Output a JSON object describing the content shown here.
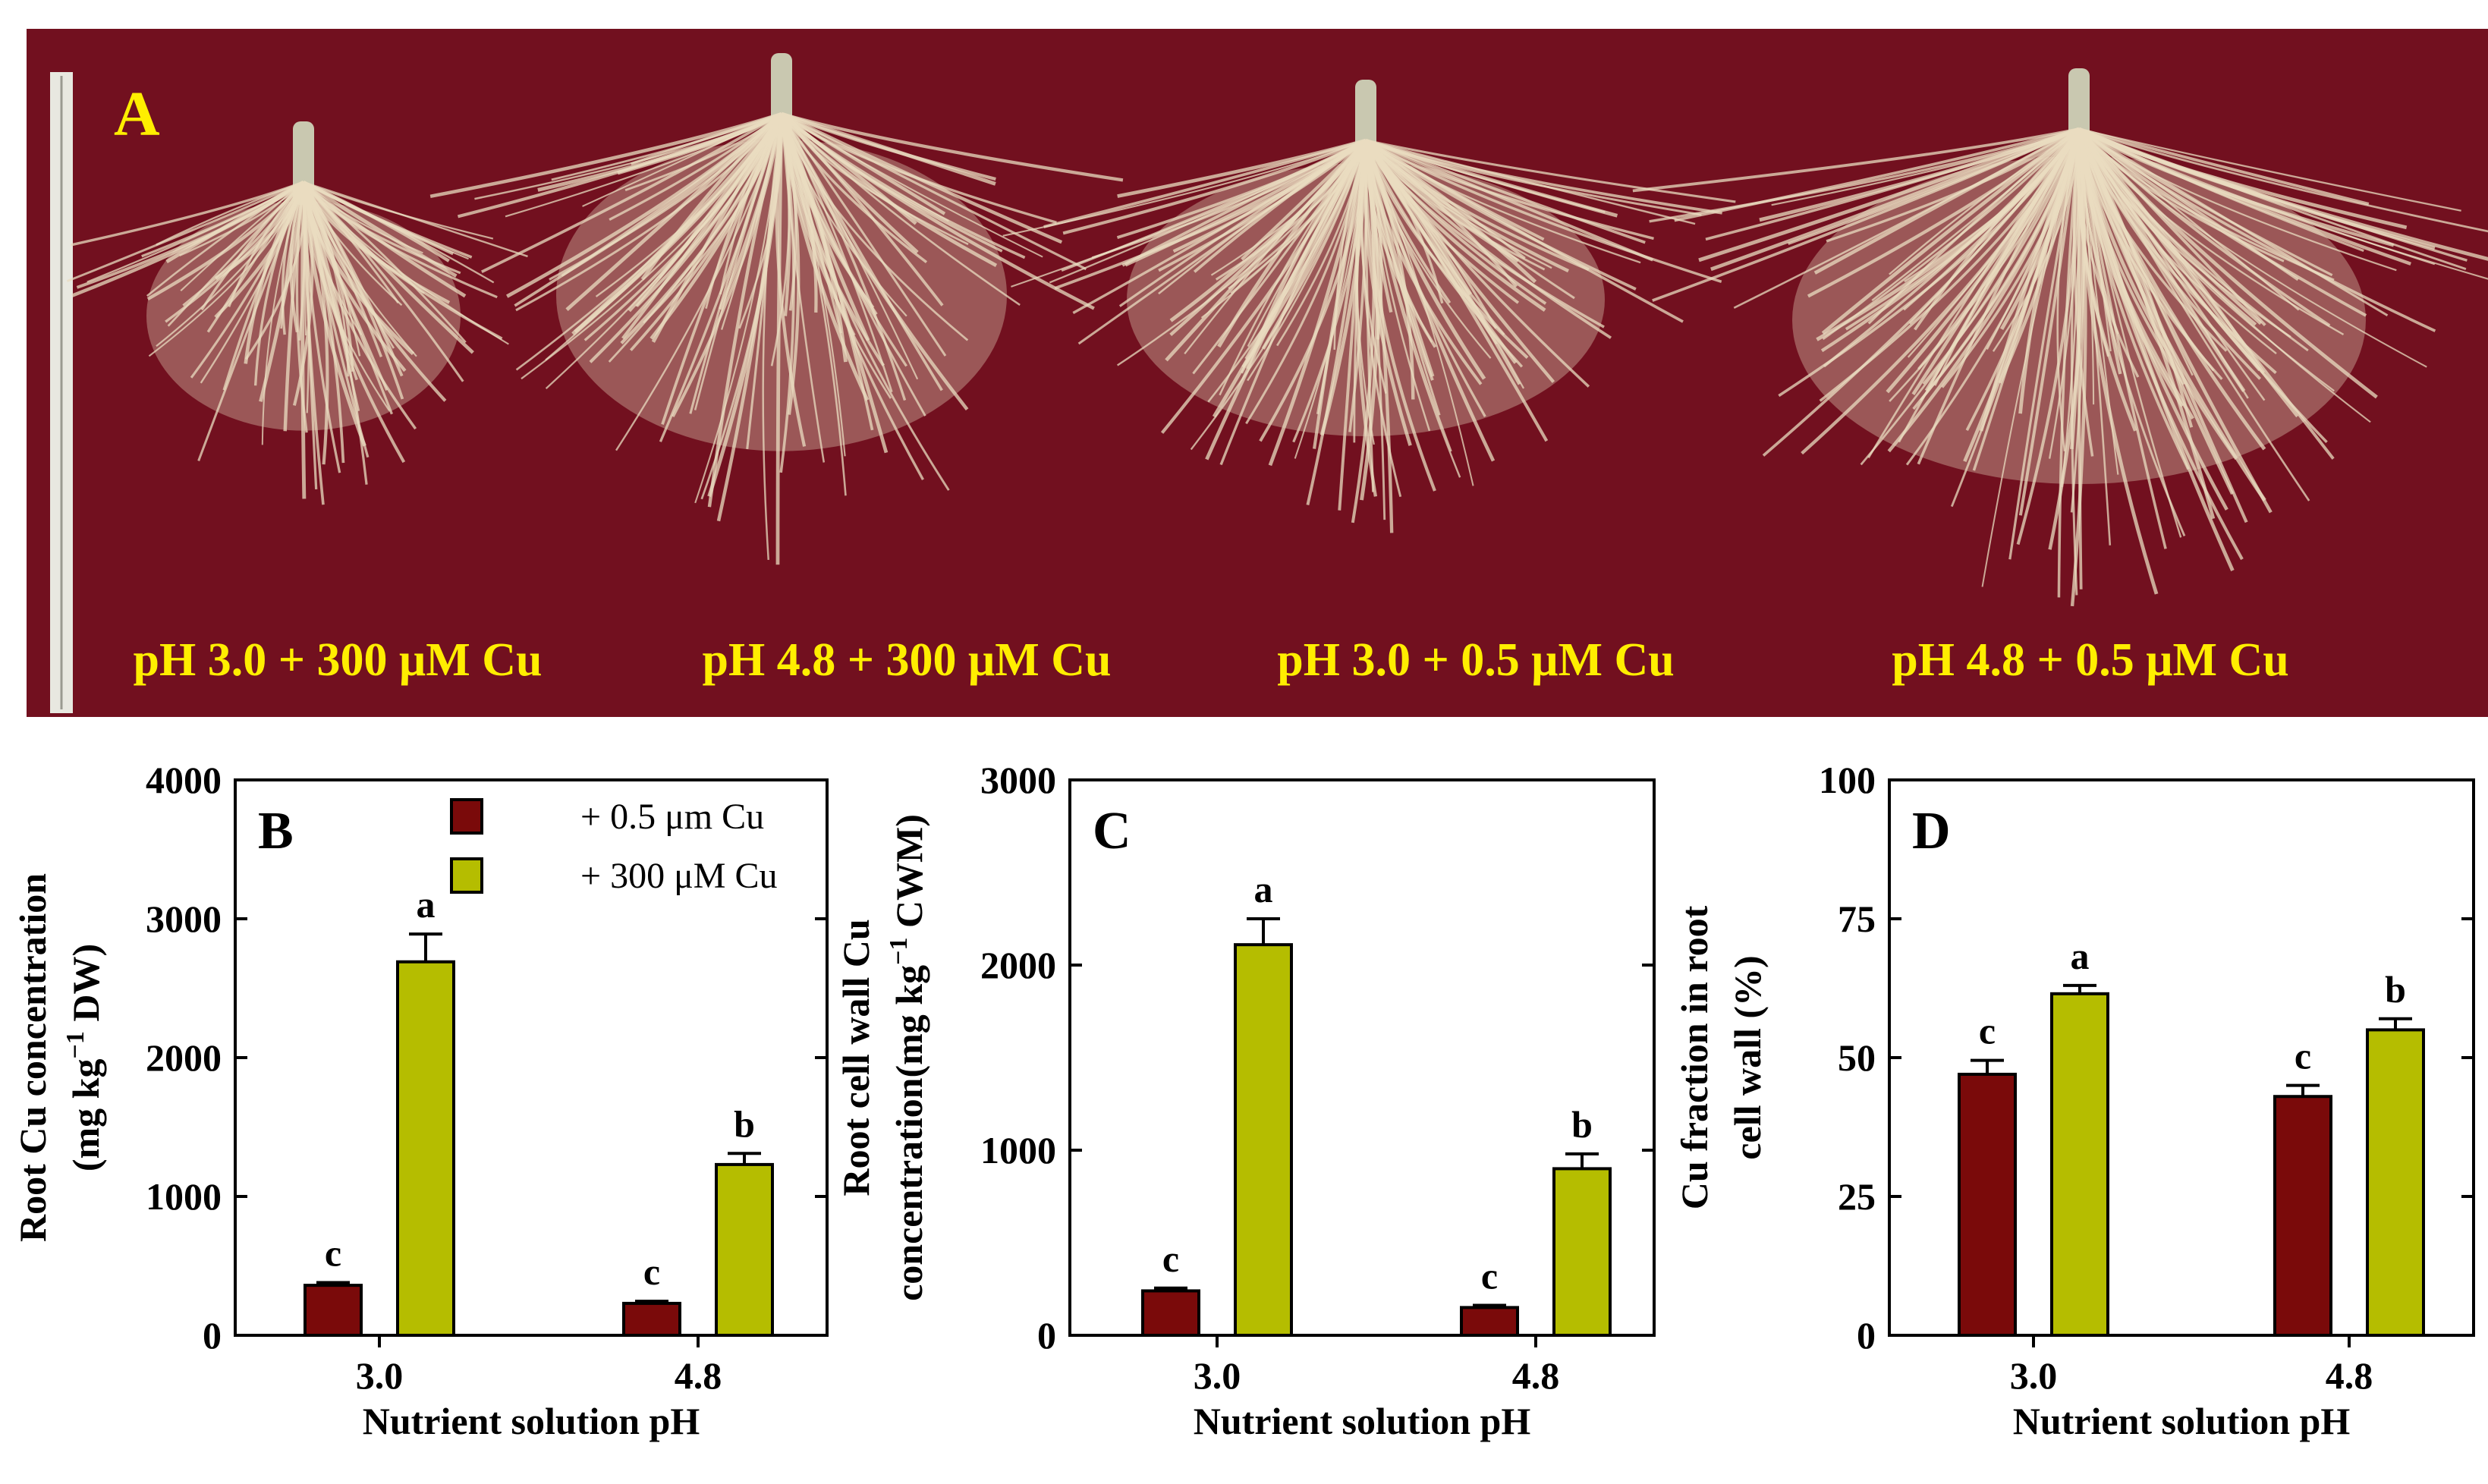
{
  "panel_a": {
    "panel_label": "A",
    "treatments": [
      "pH 3.0 + 300 μM Cu",
      "pH 4.8 + 300 μM Cu",
      "pH 3.0 + 0.5 μM Cu",
      "pH 4.8 + 0.5 μM Cu"
    ],
    "colors": {
      "background": "#72101f",
      "label": "#ffee00",
      "roots": "#e9dcc0"
    }
  },
  "legend": {
    "items": [
      "+ 0.5 μm Cu",
      "+ 300 μM Cu"
    ]
  },
  "colors": {
    "series_low": "#7a0a0a",
    "series_high": "#b5bd00"
  },
  "chart_data": [
    {
      "type": "bar",
      "panel_label": "B",
      "categories": [
        "3.0",
        "4.8"
      ],
      "xlabel": "Nutrient solution pH",
      "ylabel": [
        "Root Cu concentration",
        "(mg kg",
        "−1",
        " DW)"
      ],
      "ylim": [
        0,
        4000
      ],
      "yticks": [
        "0",
        "1000",
        "2000",
        "3000",
        "4000"
      ],
      "legend_position": "top-center",
      "series": [
        {
          "name": "+ 0.5 μm Cu",
          "values": [
            360,
            230
          ],
          "errors": [
            20,
            15
          ],
          "letters": [
            "c",
            "c"
          ]
        },
        {
          "name": "+ 300 μM Cu",
          "values": [
            2690,
            1230
          ],
          "errors": [
            200,
            80
          ],
          "letters": [
            "a",
            "b"
          ]
        }
      ]
    },
    {
      "type": "bar",
      "panel_label": "C",
      "categories": [
        "3.0",
        "4.8"
      ],
      "xlabel": "Nutrient solution pH",
      "ylabel": [
        "Root cell wall Cu",
        "concentration(mg kg",
        "−1",
        " CWM)"
      ],
      "ylim": [
        0,
        3000
      ],
      "yticks": [
        "0",
        "1000",
        "2000",
        "3000"
      ],
      "series": [
        {
          "name": "+ 0.5 μm Cu",
          "values": [
            240,
            150
          ],
          "errors": [
            15,
            12
          ],
          "letters": [
            "c",
            "c"
          ]
        },
        {
          "name": "+ 300 μM Cu",
          "values": [
            2110,
            900
          ],
          "errors": [
            140,
            80
          ],
          "letters": [
            "a",
            "b"
          ]
        }
      ]
    },
    {
      "type": "bar",
      "panel_label": "D",
      "categories": [
        "3.0",
        "4.8"
      ],
      "xlabel": "Nutrient solution pH",
      "ylabel": [
        "Cu fraction in root",
        "cell wall (%)"
      ],
      "ylim": [
        0,
        100
      ],
      "yticks": [
        "0",
        "25",
        "50",
        "75",
        "100"
      ],
      "series": [
        {
          "name": "+ 0.5 μm Cu",
          "values": [
            47,
            43
          ],
          "errors": [
            2.5,
            2
          ],
          "letters": [
            "c",
            "c"
          ]
        },
        {
          "name": "+ 300 μM Cu",
          "values": [
            61.5,
            55
          ],
          "errors": [
            1.5,
            2
          ],
          "letters": [
            "a",
            "b"
          ]
        }
      ]
    }
  ]
}
